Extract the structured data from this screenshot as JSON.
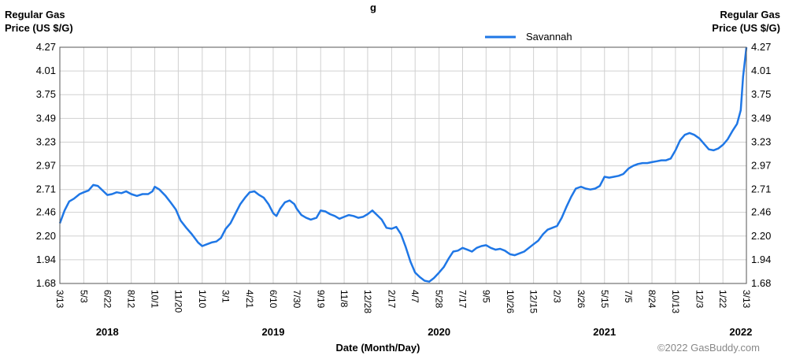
{
  "chart_data": {
    "type": "line",
    "title": "g",
    "ylabel_left": [
      "Regular Gas",
      "Price (US $/G)"
    ],
    "ylabel_right": [
      "Regular Gas",
      "Price (US $/G)"
    ],
    "xlabel": "Date (Month/Day)",
    "y_ticks": [
      "4.27",
      "4.01",
      "3.75",
      "3.49",
      "3.23",
      "2.97",
      "2.71",
      "2.46",
      "2.20",
      "1.94",
      "1.68"
    ],
    "ylim": [
      1.68,
      4.27
    ],
    "xlim": [
      "2018-03-13",
      "2022-03-13"
    ],
    "x_ticks": [
      {
        "date": "2018-03-13",
        "label": "3/13"
      },
      {
        "date": "2018-05-03",
        "label": "5/3"
      },
      {
        "date": "2018-06-22",
        "label": "6/22"
      },
      {
        "date": "2018-08-12",
        "label": "8/12"
      },
      {
        "date": "2018-10-01",
        "label": "10/1"
      },
      {
        "date": "2018-11-20",
        "label": "11/20"
      },
      {
        "date": "2019-01-10",
        "label": "1/10"
      },
      {
        "date": "2019-03-01",
        "label": "3/1"
      },
      {
        "date": "2019-04-21",
        "label": "4/21"
      },
      {
        "date": "2019-06-10",
        "label": "6/10"
      },
      {
        "date": "2019-07-30",
        "label": "7/30"
      },
      {
        "date": "2019-09-19",
        "label": "9/19"
      },
      {
        "date": "2019-11-08",
        "label": "11/8"
      },
      {
        "date": "2019-12-28",
        "label": "12/28"
      },
      {
        "date": "2020-02-17",
        "label": "2/17"
      },
      {
        "date": "2020-04-07",
        "label": "4/7"
      },
      {
        "date": "2020-05-28",
        "label": "5/28"
      },
      {
        "date": "2020-07-17",
        "label": "7/17"
      },
      {
        "date": "2020-09-05",
        "label": "9/5"
      },
      {
        "date": "2020-10-26",
        "label": "10/26"
      },
      {
        "date": "2020-12-15",
        "label": "12/15"
      },
      {
        "date": "2021-02-03",
        "label": "2/3"
      },
      {
        "date": "2021-03-26",
        "label": "3/26"
      },
      {
        "date": "2021-05-15",
        "label": "5/15"
      },
      {
        "date": "2021-07-05",
        "label": "7/5"
      },
      {
        "date": "2021-08-24",
        "label": "8/24"
      },
      {
        "date": "2021-10-13",
        "label": "10/13"
      },
      {
        "date": "2021-12-03",
        "label": "12/3"
      },
      {
        "date": "2022-01-22",
        "label": "1/22"
      },
      {
        "date": "2022-03-13",
        "label": "3/13"
      }
    ],
    "year_labels": [
      {
        "date": "2018-06-22",
        "label": "2018"
      },
      {
        "date": "2019-06-10",
        "label": "2019"
      },
      {
        "date": "2020-05-28",
        "label": "2020"
      },
      {
        "date": "2021-05-15",
        "label": "2021"
      },
      {
        "date": "2022-03-01",
        "label": "2022"
      }
    ],
    "grid": true,
    "legend_position": "top-right",
    "series": [
      {
        "name": "Savannah",
        "color": "#1f77e6",
        "points": [
          [
            "2018-03-13",
            2.34
          ],
          [
            "2018-03-23",
            2.48
          ],
          [
            "2018-04-02",
            2.58
          ],
          [
            "2018-04-12",
            2.61
          ],
          [
            "2018-04-24",
            2.66
          ],
          [
            "2018-05-03",
            2.68
          ],
          [
            "2018-05-13",
            2.7
          ],
          [
            "2018-05-23",
            2.76
          ],
          [
            "2018-06-02",
            2.75
          ],
          [
            "2018-06-12",
            2.7
          ],
          [
            "2018-06-22",
            2.65
          ],
          [
            "2018-07-02",
            2.66
          ],
          [
            "2018-07-12",
            2.68
          ],
          [
            "2018-07-22",
            2.67
          ],
          [
            "2018-08-01",
            2.69
          ],
          [
            "2018-08-12",
            2.66
          ],
          [
            "2018-08-24",
            2.64
          ],
          [
            "2018-09-05",
            2.66
          ],
          [
            "2018-09-17",
            2.66
          ],
          [
            "2018-09-26",
            2.69
          ],
          [
            "2018-10-01",
            2.74
          ],
          [
            "2018-10-11",
            2.71
          ],
          [
            "2018-10-24",
            2.64
          ],
          [
            "2018-11-05",
            2.56
          ],
          [
            "2018-11-15",
            2.49
          ],
          [
            "2018-11-25",
            2.37
          ],
          [
            "2018-12-07",
            2.29
          ],
          [
            "2018-12-19",
            2.22
          ],
          [
            "2019-01-01",
            2.13
          ],
          [
            "2019-01-10",
            2.09
          ],
          [
            "2019-01-20",
            2.11
          ],
          [
            "2019-01-30",
            2.13
          ],
          [
            "2019-02-09",
            2.14
          ],
          [
            "2019-02-19",
            2.18
          ],
          [
            "2019-03-01",
            2.28
          ],
          [
            "2019-03-11",
            2.34
          ],
          [
            "2019-03-21",
            2.44
          ],
          [
            "2019-04-01",
            2.55
          ],
          [
            "2019-04-11",
            2.62
          ],
          [
            "2019-04-21",
            2.68
          ],
          [
            "2019-05-01",
            2.69
          ],
          [
            "2019-05-11",
            2.65
          ],
          [
            "2019-05-21",
            2.62
          ],
          [
            "2019-05-31",
            2.55
          ],
          [
            "2019-06-10",
            2.45
          ],
          [
            "2019-06-17",
            2.42
          ],
          [
            "2019-06-25",
            2.5
          ],
          [
            "2019-07-05",
            2.57
          ],
          [
            "2019-07-15",
            2.59
          ],
          [
            "2019-07-25",
            2.55
          ],
          [
            "2019-07-30",
            2.5
          ],
          [
            "2019-08-09",
            2.43
          ],
          [
            "2019-08-19",
            2.4
          ],
          [
            "2019-08-29",
            2.38
          ],
          [
            "2019-09-10",
            2.4
          ],
          [
            "2019-09-19",
            2.48
          ],
          [
            "2019-09-29",
            2.47
          ],
          [
            "2019-10-09",
            2.44
          ],
          [
            "2019-10-19",
            2.42
          ],
          [
            "2019-10-29",
            2.39
          ],
          [
            "2019-11-08",
            2.41
          ],
          [
            "2019-11-18",
            2.43
          ],
          [
            "2019-11-28",
            2.42
          ],
          [
            "2019-12-08",
            2.4
          ],
          [
            "2019-12-18",
            2.41
          ],
          [
            "2019-12-28",
            2.44
          ],
          [
            "2020-01-07",
            2.48
          ],
          [
            "2020-01-17",
            2.43
          ],
          [
            "2020-01-27",
            2.38
          ],
          [
            "2020-02-06",
            2.29
          ],
          [
            "2020-02-17",
            2.28
          ],
          [
            "2020-02-27",
            2.3
          ],
          [
            "2020-03-08",
            2.22
          ],
          [
            "2020-03-18",
            2.08
          ],
          [
            "2020-03-28",
            1.92
          ],
          [
            "2020-04-07",
            1.8
          ],
          [
            "2020-04-17",
            1.75
          ],
          [
            "2020-04-27",
            1.71
          ],
          [
            "2020-05-07",
            1.7
          ],
          [
            "2020-05-17",
            1.74
          ],
          [
            "2020-05-28",
            1.8
          ],
          [
            "2020-06-07",
            1.86
          ],
          [
            "2020-06-17",
            1.95
          ],
          [
            "2020-06-27",
            2.03
          ],
          [
            "2020-07-07",
            2.04
          ],
          [
            "2020-07-17",
            2.07
          ],
          [
            "2020-07-27",
            2.05
          ],
          [
            "2020-08-06",
            2.03
          ],
          [
            "2020-08-16",
            2.07
          ],
          [
            "2020-08-26",
            2.09
          ],
          [
            "2020-09-05",
            2.1
          ],
          [
            "2020-09-15",
            2.07
          ],
          [
            "2020-09-25",
            2.05
          ],
          [
            "2020-10-05",
            2.06
          ],
          [
            "2020-10-15",
            2.04
          ],
          [
            "2020-10-26",
            2.0
          ],
          [
            "2020-11-05",
            1.99
          ],
          [
            "2020-11-15",
            2.01
          ],
          [
            "2020-11-25",
            2.03
          ],
          [
            "2020-12-05",
            2.07
          ],
          [
            "2020-12-15",
            2.11
          ],
          [
            "2020-12-25",
            2.15
          ],
          [
            "2021-01-04",
            2.22
          ],
          [
            "2021-01-14",
            2.27
          ],
          [
            "2021-01-24",
            2.29
          ],
          [
            "2021-02-03",
            2.31
          ],
          [
            "2021-02-13",
            2.4
          ],
          [
            "2021-02-23",
            2.52
          ],
          [
            "2021-03-05",
            2.63
          ],
          [
            "2021-03-15",
            2.72
          ],
          [
            "2021-03-26",
            2.74
          ],
          [
            "2021-04-05",
            2.72
          ],
          [
            "2021-04-15",
            2.71
          ],
          [
            "2021-04-25",
            2.72
          ],
          [
            "2021-05-05",
            2.75
          ],
          [
            "2021-05-15",
            2.85
          ],
          [
            "2021-05-25",
            2.84
          ],
          [
            "2021-06-04",
            2.85
          ],
          [
            "2021-06-14",
            2.86
          ],
          [
            "2021-06-24",
            2.88
          ],
          [
            "2021-07-05",
            2.94
          ],
          [
            "2021-07-15",
            2.97
          ],
          [
            "2021-07-25",
            2.99
          ],
          [
            "2021-08-04",
            3.0
          ],
          [
            "2021-08-14",
            3.0
          ],
          [
            "2021-08-24",
            3.01
          ],
          [
            "2021-09-03",
            3.02
          ],
          [
            "2021-09-13",
            3.03
          ],
          [
            "2021-09-23",
            3.03
          ],
          [
            "2021-10-03",
            3.05
          ],
          [
            "2021-10-13",
            3.14
          ],
          [
            "2021-10-23",
            3.25
          ],
          [
            "2021-11-02",
            3.31
          ],
          [
            "2021-11-12",
            3.33
          ],
          [
            "2021-11-22",
            3.31
          ],
          [
            "2021-12-03",
            3.27
          ],
          [
            "2021-12-13",
            3.21
          ],
          [
            "2021-12-23",
            3.15
          ],
          [
            "2022-01-02",
            3.14
          ],
          [
            "2022-01-12",
            3.16
          ],
          [
            "2022-01-22",
            3.2
          ],
          [
            "2022-02-01",
            3.26
          ],
          [
            "2022-02-11",
            3.35
          ],
          [
            "2022-02-21",
            3.43
          ],
          [
            "2022-03-01",
            3.58
          ],
          [
            "2022-03-06",
            3.95
          ],
          [
            "2022-03-13",
            4.27
          ]
        ]
      }
    ],
    "watermark": "©2022 GasBuddy.com"
  }
}
